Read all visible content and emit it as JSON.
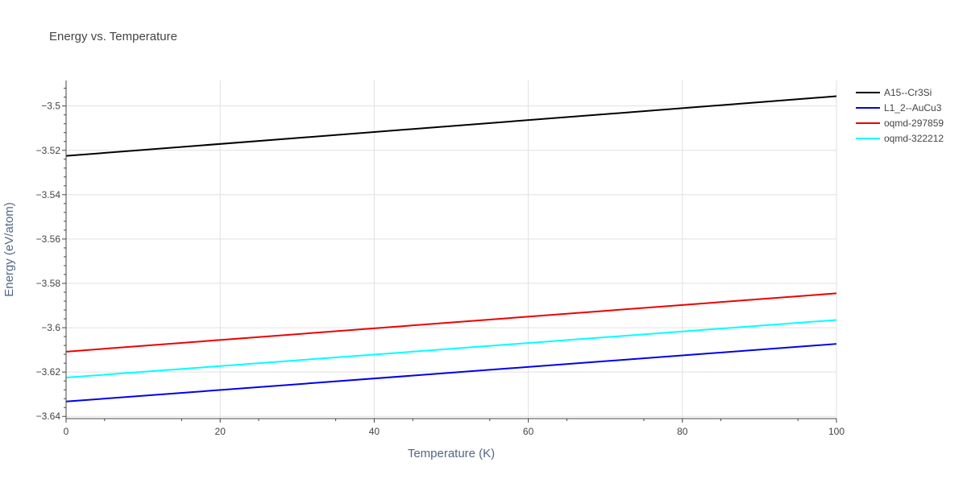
{
  "chart_data": {
    "type": "line",
    "title": "Energy vs. Temperature",
    "xlabel": "Temperature (K)",
    "ylabel": "Energy (eV/atom)",
    "xlim": [
      0,
      100
    ],
    "ylim": [
      -3.641,
      -3.4885
    ],
    "x_ticks": [
      0,
      20,
      40,
      60,
      80,
      100
    ],
    "x_tick_labels": [
      "0",
      "20",
      "40",
      "60",
      "80",
      "100"
    ],
    "y_ticks": [
      -3.64,
      -3.62,
      -3.6,
      -3.58,
      -3.56,
      -3.54,
      -3.52,
      -3.5
    ],
    "y_tick_labels": [
      "−3.64",
      "−3.62",
      "−3.6",
      "−3.58",
      "−3.56",
      "−3.54",
      "−3.52",
      "−3.5"
    ],
    "grid": true,
    "legend_position": "top-right",
    "series": [
      {
        "name": "A15--Cr3Si",
        "color": "#000000",
        "x": [
          0,
          100
        ],
        "y": [
          -3.5225,
          -3.4956
        ]
      },
      {
        "name": "L1_2--AuCu3",
        "color": "#0000ee",
        "x": [
          0,
          100
        ],
        "y": [
          -3.6333,
          -3.6073
        ]
      },
      {
        "name": "oqmd-297859",
        "color": "#ee0000",
        "x": [
          0,
          100
        ],
        "y": [
          -3.6108,
          -3.5845
        ]
      },
      {
        "name": "oqmd-322212",
        "color": "#00ffff",
        "x": [
          0,
          100
        ],
        "y": [
          -3.6225,
          -3.5965
        ]
      }
    ]
  }
}
